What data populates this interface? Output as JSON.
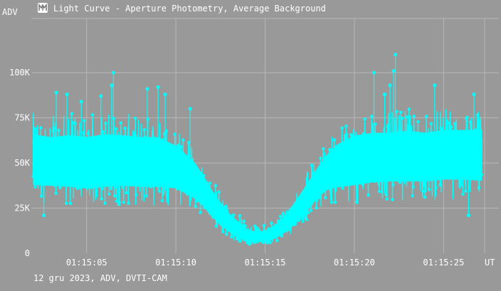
{
  "window": {
    "title": "Light Curve - Aperture Photometry, Average Background",
    "icon": "app-logo-icon"
  },
  "footer": {
    "text": "12 gru 2023, ADV, DVTI-CAM"
  },
  "colors": {
    "background": "#999999",
    "grid": "#b8b8b8",
    "series": "#00ffff",
    "text": "#ffffff"
  },
  "chart_data": {
    "type": "scatter",
    "title": "Light Curve - Aperture Photometry, Average Background",
    "xlabel": "UT",
    "ylabel": "ADV",
    "x_ticks": [
      "01:15:05",
      "01:15:10",
      "01:15:15",
      "01:15:20",
      "01:15:25"
    ],
    "x_tick_seconds": [
      5,
      10,
      15,
      20,
      25
    ],
    "xlim_seconds": [
      1.9,
      27.3
    ],
    "y_ticks": [
      "0",
      "25K",
      "50K",
      "75K",
      "100K"
    ],
    "y_tick_values": [
      0,
      25000,
      50000,
      75000,
      100000
    ],
    "ylim": [
      0,
      130000
    ],
    "grid": true,
    "series": [
      {
        "color": "#00ffff",
        "x_seconds": [
          2.0,
          3.0,
          4.0,
          5.0,
          6.0,
          7.0,
          8.0,
          9.0,
          10.0,
          11.0,
          11.5,
          12.0,
          12.5,
          13.0,
          13.5,
          14.0,
          14.5,
          15.0,
          15.5,
          16.0,
          16.5,
          17.0,
          17.5,
          18.0,
          18.5,
          19.0,
          20.0,
          21.0,
          22.0,
          23.0,
          24.0,
          25.0,
          26.0,
          27.0
        ],
        "mean": [
          51000,
          50000,
          50000,
          49000,
          50000,
          50000,
          50000,
          50000,
          47000,
          40000,
          34000,
          27000,
          21000,
          16000,
          12000,
          9000,
          8000,
          8500,
          10000,
          14000,
          19000,
          25000,
          32000,
          39000,
          44000,
          48000,
          52000,
          53000,
          53000,
          53000,
          53000,
          54000,
          54000,
          54000
        ],
        "low": [
          27000,
          27000,
          26000,
          25000,
          26000,
          27000,
          26000,
          26000,
          27000,
          23000,
          20000,
          15000,
          11000,
          8000,
          6000,
          5000,
          4500,
          5000,
          6000,
          8000,
          11000,
          15000,
          20000,
          25000,
          28000,
          27000,
          26000,
          28000,
          29000,
          29000,
          29000,
          30000,
          30000,
          29000
        ],
        "high": [
          78000,
          76000,
          78000,
          77000,
          79000,
          78000,
          76000,
          76000,
          70000,
          60000,
          52000,
          42000,
          34000,
          27000,
          22000,
          17000,
          15000,
          16000,
          19000,
          25000,
          32000,
          40000,
          48000,
          56000,
          64000,
          70000,
          76000,
          78000,
          78000,
          80000,
          78000,
          80000,
          80000,
          80000
        ],
        "peaks": [
          {
            "x": 3.3,
            "y": 89000
          },
          {
            "x": 3.9,
            "y": 88000
          },
          {
            "x": 4.7,
            "y": 84000
          },
          {
            "x": 5.8,
            "y": 87000
          },
          {
            "x": 6.4,
            "y": 93000
          },
          {
            "x": 6.5,
            "y": 100000
          },
          {
            "x": 8.4,
            "y": 91000
          },
          {
            "x": 9.0,
            "y": 92000
          },
          {
            "x": 9.4,
            "y": 88000
          },
          {
            "x": 10.8,
            "y": 80000
          },
          {
            "x": 21.1,
            "y": 100000
          },
          {
            "x": 21.7,
            "y": 88000
          },
          {
            "x": 22.0,
            "y": 93000
          },
          {
            "x": 22.3,
            "y": 110000
          },
          {
            "x": 22.2,
            "y": 101000
          },
          {
            "x": 24.5,
            "y": 93000
          },
          {
            "x": 26.7,
            "y": 88000
          },
          {
            "x": 26.4,
            "y": 21000
          },
          {
            "x": 2.6,
            "y": 21000
          }
        ]
      }
    ]
  }
}
